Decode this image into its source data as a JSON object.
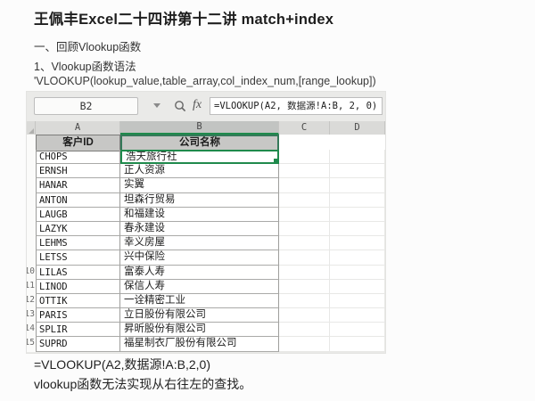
{
  "page": {
    "title": "王佩丰Excel二十四讲第十二讲 match+index",
    "section_heading": "一、回顾Vlookup函数",
    "subsection_heading": "1、Vlookup函数语法",
    "syntax_line": "'VLOOKUP(lookup_value,table_array,col_index_num,[range_lookup])",
    "note_formula": "=VLOOKUP(A2,数据源!A:B,2,0)",
    "note_text": "vlookup函数无法实现从右往左的查找。"
  },
  "spreadsheet": {
    "name_box_value": "B2",
    "formula_bar_value": "=VLOOKUP(A2, 数据源!A:B, 2, 0)",
    "fx_icon_label": "fx",
    "column_letters": [
      "A",
      "B",
      "C",
      "D"
    ],
    "selected_column": "B",
    "selected_cell": "B2",
    "table_headers": {
      "customer_id": "客户ID",
      "company_name": "公司名称"
    },
    "rows": [
      {
        "row_label": "",
        "id": "CHOPS",
        "name": "浩天旅行社",
        "selected": true
      },
      {
        "row_label": "",
        "id": "ERNSH",
        "name": "正人资源"
      },
      {
        "row_label": "",
        "id": "HANAR",
        "name": "实翼"
      },
      {
        "row_label": "",
        "id": "ANTON",
        "name": "坦森行贸易"
      },
      {
        "row_label": "",
        "id": "LAUGB",
        "name": "和福建设"
      },
      {
        "row_label": "",
        "id": "LAZYK",
        "name": "春永建设"
      },
      {
        "row_label": "",
        "id": "LEHMS",
        "name": "幸义房屋"
      },
      {
        "row_label": "",
        "id": "LETSS",
        "name": "兴中保险"
      },
      {
        "row_label": "10",
        "id": "LILAS",
        "name": "富泰人寿"
      },
      {
        "row_label": "11",
        "id": "LINOD",
        "name": "保信人寿"
      },
      {
        "row_label": "12",
        "id": "OTTIK",
        "name": "一诠精密工业"
      },
      {
        "row_label": "13",
        "id": "PARIS",
        "name": "立日股份有限公司"
      },
      {
        "row_label": "14",
        "id": "SPLIR",
        "name": "昇昕股份有限公司"
      },
      {
        "row_label": "15",
        "id": "SUPRD",
        "name": "福星制衣厂股份有限公司"
      }
    ]
  },
  "colors": {
    "accent_green": "#1f8a4c",
    "note_red": "#c5423d",
    "header_fill": "#c7c7c5"
  }
}
